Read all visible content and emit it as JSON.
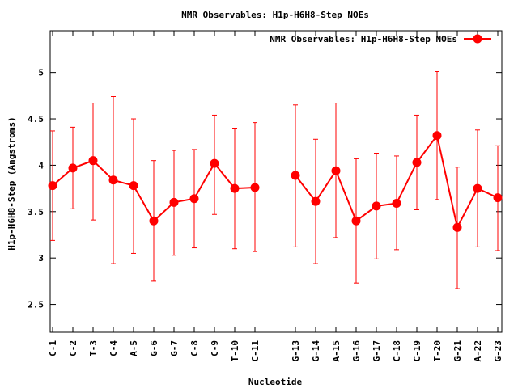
{
  "chart_data": {
    "type": "line",
    "title": "NMR Observables: H1p-H6H8-Step NOEs",
    "xlabel": "Nucleotide",
    "ylabel": "H1p-H6H8-Step (Angstroms)",
    "ylim": [
      2.2,
      5.45
    ],
    "yticks": [
      "2.5",
      "3",
      "3.5",
      "4",
      "4.5",
      "5"
    ],
    "legend": {
      "placement": "top-right",
      "label": "NMR Observables: H1p-H6H8-Step NOEs"
    },
    "grid": false,
    "color": "#ff0000",
    "categories": [
      "C-1",
      "C-2",
      "T-3",
      "C-4",
      "A-5",
      "G-6",
      "G-7",
      "C-8",
      "C-9",
      "T-10",
      "C-11",
      "G-13",
      "G-14",
      "A-15",
      "G-16",
      "G-17",
      "C-18",
      "C-19",
      "T-20",
      "G-21",
      "A-22",
      "G-23"
    ],
    "x": [
      1,
      2,
      3,
      4,
      5,
      6,
      7,
      8,
      9,
      10,
      11,
      13,
      14,
      15,
      16,
      17,
      18,
      19,
      20,
      21,
      22,
      23
    ],
    "series": [
      {
        "name": "NMR Observables: H1p-H6H8-Step NOEs",
        "values": [
          3.78,
          3.97,
          4.05,
          3.84,
          3.78,
          3.4,
          3.6,
          3.64,
          4.02,
          3.75,
          3.76,
          3.89,
          3.61,
          3.94,
          3.4,
          3.56,
          3.59,
          4.03,
          4.32,
          3.33,
          3.75,
          3.65
        ],
        "err_low": [
          3.19,
          3.53,
          3.41,
          2.94,
          3.05,
          2.75,
          3.03,
          3.11,
          3.47,
          3.1,
          3.07,
          3.12,
          2.94,
          3.22,
          2.73,
          2.99,
          3.09,
          3.52,
          3.63,
          2.67,
          3.12,
          3.08
        ],
        "err_high": [
          4.37,
          4.41,
          4.67,
          4.74,
          4.5,
          4.05,
          4.16,
          4.17,
          4.54,
          4.4,
          4.46,
          4.65,
          4.28,
          4.67,
          4.07,
          4.13,
          4.1,
          4.54,
          5.01,
          3.98,
          4.38,
          4.21
        ]
      }
    ]
  }
}
